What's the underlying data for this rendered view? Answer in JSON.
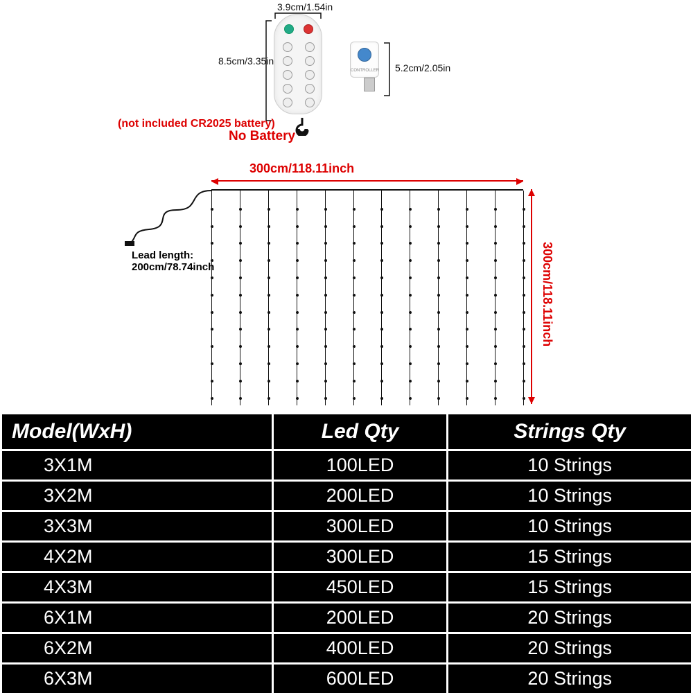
{
  "remote": {
    "width_label": "3.9cm/1.54in",
    "height_label": "8.5cm/3.35in"
  },
  "usb": {
    "height_label": "5.2cm/2.05in"
  },
  "warning": {
    "line1": "(not included CR2025 battery)",
    "line2": "No Battery"
  },
  "curtain_diagram": {
    "width_label": "300cm/118.11inch",
    "height_label": "300cm/118.11inch",
    "lead_label1": "Lead length:",
    "lead_label2": "200cm/78.74inch",
    "strands": 12,
    "leds_per_strand": 12,
    "dim_color": "#d00",
    "line_color": "#111"
  },
  "table": {
    "headers": [
      "Model(WxH)",
      "Led Qty",
      "Strings Qty"
    ],
    "rows": [
      [
        "3X1M",
        "100LED",
        "10 Strings"
      ],
      [
        "3X2M",
        "200LED",
        "10 Strings"
      ],
      [
        "3X3M",
        "300LED",
        "10 Strings"
      ],
      [
        "4X2M",
        "300LED",
        "15 Strings"
      ],
      [
        "4X3M",
        "450LED",
        "15 Strings"
      ],
      [
        "6X1M",
        "200LED",
        "20 Strings"
      ],
      [
        "6X2M",
        "400LED",
        "20 Strings"
      ],
      [
        "6X3M",
        "600LED",
        "20 Strings"
      ]
    ],
    "header_bg": "#000000",
    "row_bg": "#000000",
    "text_color": "#ffffff",
    "border_color": "#ffffff"
  }
}
